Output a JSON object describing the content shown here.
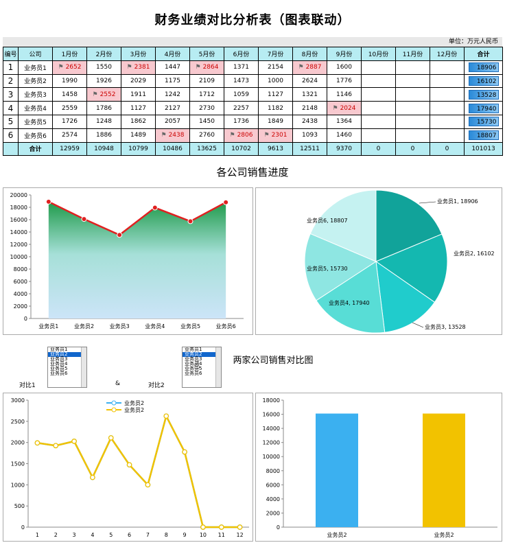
{
  "title": "财务业绩对比分析表（图表联动）",
  "unit": "单位：万元人民币",
  "table": {
    "headers": [
      "编号",
      "公司",
      "1月份",
      "2月份",
      "3月份",
      "4月份",
      "5月份",
      "6月份",
      "7月份",
      "8月份",
      "9月份",
      "10月份",
      "11月份",
      "12月份",
      "合计"
    ],
    "rows": [
      {
        "no": "1",
        "company": "业务员1",
        "values": [
          "2652",
          "1550",
          "2381",
          "1447",
          "2864",
          "1371",
          "2154",
          "2887",
          "1600",
          "",
          "",
          ""
        ],
        "highlight": [
          0,
          2,
          4,
          7
        ],
        "total": "18906"
      },
      {
        "no": "2",
        "company": "业务员2",
        "values": [
          "1990",
          "1926",
          "2029",
          "1175",
          "2109",
          "1473",
          "1000",
          "2624",
          "1776",
          "",
          "",
          ""
        ],
        "highlight": [],
        "total": "16102"
      },
      {
        "no": "3",
        "company": "业务员3",
        "values": [
          "1458",
          "2552",
          "1911",
          "1242",
          "1712",
          "1059",
          "1127",
          "1321",
          "1146",
          "",
          "",
          ""
        ],
        "highlight": [
          1
        ],
        "total": "13528"
      },
      {
        "no": "4",
        "company": "业务员4",
        "values": [
          "2559",
          "1786",
          "1127",
          "2127",
          "2730",
          "2257",
          "1182",
          "2148",
          "2024",
          "",
          "",
          ""
        ],
        "highlight": [
          8
        ],
        "total": "17940"
      },
      {
        "no": "5",
        "company": "业务员5",
        "values": [
          "1726",
          "1248",
          "1862",
          "2057",
          "1450",
          "1736",
          "1849",
          "2438",
          "1364",
          "",
          "",
          ""
        ],
        "highlight": [],
        "total": "15730"
      },
      {
        "no": "6",
        "company": "业务员6",
        "values": [
          "2574",
          "1886",
          "1489",
          "2438",
          "2760",
          "2806",
          "2301",
          "1093",
          "1460",
          "",
          "",
          ""
        ],
        "highlight": [
          3,
          5,
          6
        ],
        "total": "18807"
      }
    ],
    "total_row": {
      "label": "合计",
      "values": [
        "12959",
        "10948",
        "10799",
        "10486",
        "13625",
        "10702",
        "9613",
        "12511",
        "9370",
        "0",
        "0",
        "0"
      ],
      "total": "101013"
    }
  },
  "section1_title": "各公司销售进度",
  "section2_title": "两家公司销售对比图",
  "section2_title_visible": "两家公司销售对比图",
  "compare": {
    "label1": "对比1",
    "amp": "&",
    "label2": "对比2",
    "list_items": [
      "业务员1",
      "业务员2",
      "业务员3",
      "业务员4",
      "业务员5",
      "业务员6"
    ],
    "selected_index": 1
  },
  "colors": {
    "header_bg": "#b7ecf2",
    "highlight_bg": "#f8c9cf",
    "line_red": "#e02020",
    "series_blue": "#3bb0f0",
    "series_yellow": "#f2c200"
  },
  "chart_data": [
    {
      "type": "area",
      "categories": [
        "业务员1",
        "业务员2",
        "业务员3",
        "业务员4",
        "业务员5",
        "业务员6"
      ],
      "values": [
        18906,
        16102,
        13528,
        17940,
        15730,
        18807
      ],
      "ylim": [
        0,
        20000
      ],
      "yticks": [
        "0",
        "2000",
        "4000",
        "6000",
        "8000",
        "10000",
        "12000",
        "14000",
        "16000",
        "18000",
        "20000"
      ]
    },
    {
      "type": "pie",
      "labels": [
        "业务员1, 18906",
        "业务员2, 16102",
        "业务员3, 13528",
        "业务员4, 17940",
        "业务员5, 15730",
        "业务员6, 18807"
      ],
      "values": [
        18906,
        16102,
        13528,
        17940,
        15730,
        18807
      ],
      "colors": [
        "#11a39a",
        "#14b8b0",
        "#20cccc",
        "#58ddd6",
        "#8ee6e2",
        "#c5f2f1"
      ]
    },
    {
      "type": "line",
      "x": [
        "1",
        "2",
        "3",
        "4",
        "5",
        "6",
        "7",
        "8",
        "9",
        "10",
        "11",
        "12"
      ],
      "series": [
        {
          "name": "业务员2",
          "values": [
            1990,
            1926,
            2029,
            1175,
            2109,
            1473,
            1000,
            2624,
            1776,
            0,
            0,
            0
          ]
        },
        {
          "name": "业务员2",
          "values": [
            1990,
            1926,
            2029,
            1175,
            2109,
            1473,
            1000,
            2624,
            1776,
            0,
            0,
            0
          ]
        }
      ],
      "ylim": [
        0,
        3000
      ],
      "yticks": [
        "0",
        "500",
        "1000",
        "1500",
        "2000",
        "2500",
        "3000"
      ]
    },
    {
      "type": "bar",
      "categories": [
        "业务员2",
        "业务员2"
      ],
      "values": [
        16102,
        16102
      ],
      "ylim": [
        0,
        18000
      ],
      "yticks": [
        "0",
        "2000",
        "4000",
        "6000",
        "8000",
        "10000",
        "12000",
        "14000",
        "16000",
        "18000"
      ]
    }
  ]
}
